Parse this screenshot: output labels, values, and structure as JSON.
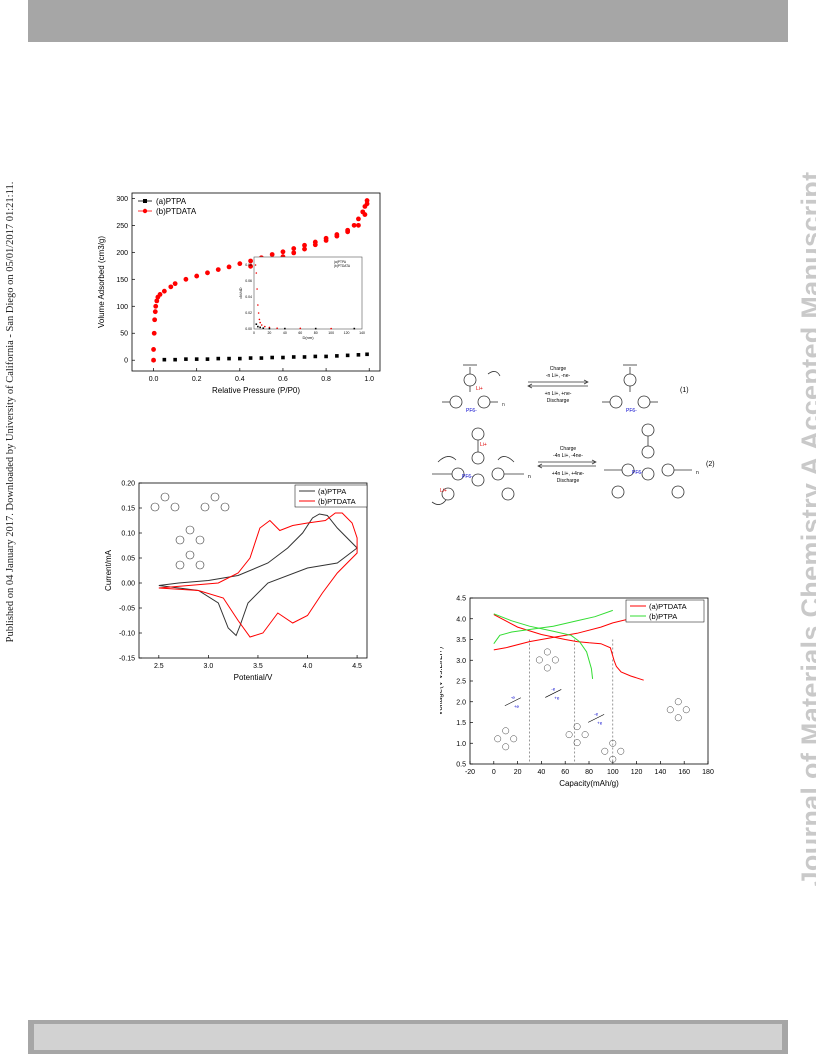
{
  "sidebar_left": "Published on 04 January 2017. Downloaded by University of California - San Diego on 05/01/2017 01:21:11.",
  "sidebar_right": "Journal of Materials Chemistry A Accepted Manuscript",
  "chart_data": [
    {
      "type": "scatter",
      "xlabel": "Relative Pressure (P/P0)",
      "ylabel": "Volume Adsorbed (cm3/g)",
      "xlim": [
        -0.1,
        1.05
      ],
      "ylim": [
        -20,
        310
      ],
      "xticks": [
        "0.0",
        "0.2",
        "0.4",
        "0.6",
        "0.8",
        "1.0"
      ],
      "yticks": [
        "0",
        "50",
        "100",
        "150",
        "200",
        "250",
        "300"
      ],
      "series": [
        {
          "name": "(a)PTPA",
          "color": "#000000",
          "x": [
            0.0,
            0.05,
            0.1,
            0.15,
            0.2,
            0.25,
            0.3,
            0.35,
            0.4,
            0.45,
            0.5,
            0.55,
            0.6,
            0.65,
            0.7,
            0.75,
            0.8,
            0.85,
            0.9,
            0.95,
            0.99
          ],
          "y": [
            0,
            1,
            1,
            2,
            2,
            2,
            3,
            3,
            3,
            4,
            4,
            5,
            5,
            6,
            6,
            7,
            7,
            8,
            9,
            10,
            11
          ]
        },
        {
          "name": "(b)PTDATA",
          "color": "#ff0000",
          "x": [
            0.0,
            0.0,
            0.003,
            0.005,
            0.008,
            0.01,
            0.015,
            0.02,
            0.03,
            0.05,
            0.08,
            0.1,
            0.15,
            0.2,
            0.25,
            0.3,
            0.35,
            0.4,
            0.45,
            0.5,
            0.55,
            0.6,
            0.65,
            0.7,
            0.75,
            0.8,
            0.85,
            0.9,
            0.93,
            0.95,
            0.97,
            0.98,
            0.99,
            0.99,
            0.98,
            0.95,
            0.9,
            0.85,
            0.8,
            0.75,
            0.7,
            0.65,
            0.6,
            0.55,
            0.5,
            0.45
          ],
          "y": [
            0,
            20,
            50,
            75,
            90,
            100,
            110,
            117,
            122,
            128,
            136,
            142,
            150,
            156,
            162,
            168,
            173,
            179,
            184,
            190,
            196,
            201,
            207,
            213,
            219,
            226,
            233,
            241,
            250,
            262,
            275,
            285,
            296,
            290,
            270,
            250,
            238,
            230,
            222,
            214,
            206,
            199,
            192,
            186,
            180,
            174
          ]
        }
      ],
      "inset": {
        "xlabel": "D(nm)",
        "ylabel": "dV/dD",
        "xticks": [
          "0",
          "20",
          "40",
          "60",
          "80",
          "100",
          "120",
          "140"
        ],
        "yticks": [
          "0.00",
          "0.02",
          "0.04",
          "0.06",
          "0.08"
        ],
        "legend": [
          "(a)PTPA",
          "(b)PTDATA"
        ]
      }
    },
    {
      "type": "line",
      "xlabel": "Potential/V",
      "ylabel": "Current/mA",
      "xlim": [
        2.3,
        4.6
      ],
      "ylim": [
        -0.15,
        0.2
      ],
      "xticks": [
        "2.5",
        "3.0",
        "3.5",
        "4.0",
        "4.5"
      ],
      "yticks": [
        "-0.15",
        "-0.10",
        "-0.05",
        "0.00",
        "0.05",
        "0.10",
        "0.15",
        "0.20"
      ],
      "series": [
        {
          "name": "(a)PTPA",
          "color": "#333333",
          "x": [
            2.5,
            2.7,
            3.0,
            3.3,
            3.6,
            3.8,
            3.95,
            4.05,
            4.12,
            4.2,
            4.3,
            4.5,
            4.5,
            4.3,
            4.0,
            3.6,
            3.4,
            3.32,
            3.28,
            3.2,
            3.1,
            2.9,
            2.7,
            2.5
          ],
          "y": [
            -0.005,
            0.0,
            0.005,
            0.015,
            0.04,
            0.07,
            0.1,
            0.13,
            0.138,
            0.135,
            0.11,
            0.07,
            0.07,
            0.04,
            0.03,
            0.0,
            -0.04,
            -0.085,
            -0.105,
            -0.09,
            -0.04,
            -0.015,
            -0.01,
            -0.005
          ]
        },
        {
          "name": "(b)PTDATA",
          "color": "#ff0000",
          "x": [
            2.5,
            2.8,
            3.1,
            3.3,
            3.42,
            3.52,
            3.62,
            3.72,
            3.85,
            4.0,
            4.18,
            4.28,
            4.35,
            4.45,
            4.5,
            4.5,
            4.3,
            4.15,
            4.0,
            3.85,
            3.7,
            3.55,
            3.42,
            3.3,
            3.15,
            2.9,
            2.5
          ],
          "y": [
            -0.01,
            -0.005,
            0.0,
            0.02,
            0.05,
            0.11,
            0.125,
            0.105,
            0.115,
            0.12,
            0.125,
            0.14,
            0.14,
            0.12,
            0.09,
            0.06,
            0.02,
            -0.02,
            -0.065,
            -0.08,
            -0.06,
            -0.1,
            -0.108,
            -0.075,
            -0.03,
            -0.015,
            -0.01
          ]
        }
      ],
      "legend": [
        "(a)PTPA",
        "(b)PTDATA"
      ]
    },
    {
      "type": "line",
      "xlabel": "Capacity(mAh/g)",
      "ylabel": "Voltage(V vs.Li/Li+)",
      "xlim": [
        -20,
        180
      ],
      "ylim": [
        0.5,
        4.5
      ],
      "xticks": [
        "-20",
        "0",
        "20",
        "40",
        "60",
        "80",
        "100",
        "120",
        "140",
        "160",
        "180"
      ],
      "yticks": [
        "0.5",
        "1.0",
        "1.5",
        "2.0",
        "2.5",
        "3.0",
        "3.5",
        "4.0",
        "4.5"
      ],
      "series": [
        {
          "name": "(a)PTDATA",
          "color": "#ff0000",
          "x": [
            0,
            10,
            30,
            50,
            70,
            90,
            100,
            110,
            120,
            126,
            0,
            20,
            40,
            60,
            70,
            80,
            90,
            98,
            101,
            103,
            107,
            115,
            126
          ],
          "y": [
            3.25,
            3.3,
            3.45,
            3.55,
            3.65,
            3.8,
            3.9,
            3.97,
            4.0,
            4.05,
            4.1,
            3.8,
            3.62,
            3.5,
            3.45,
            3.42,
            3.4,
            3.3,
            3.0,
            2.85,
            2.72,
            2.62,
            2.52
          ]
        },
        {
          "name": "(b)PTPA",
          "color": "#33dd33",
          "x": [
            0,
            5,
            15,
            30,
            50,
            70,
            85,
            100,
            0,
            15,
            30,
            50,
            65,
            72,
            78,
            82,
            83
          ],
          "y": [
            3.4,
            3.6,
            3.68,
            3.74,
            3.82,
            3.95,
            4.05,
            4.2,
            4.12,
            3.95,
            3.82,
            3.7,
            3.6,
            3.45,
            3.2,
            2.8,
            2.55
          ]
        }
      ],
      "legend": [
        "(a)PTDATA",
        "(b)PTPA"
      ],
      "markers_x": [
        30,
        68,
        100
      ],
      "annotations": [
        "-e",
        "+e",
        "-e",
        "+e",
        "-e",
        "+e"
      ]
    }
  ],
  "scheme": {
    "eq1_label": "(1)",
    "eq2_label": "(2)",
    "eq1_top": [
      "Charge",
      "-n Li+, -ne-"
    ],
    "eq1_bottom": [
      "+n Li+, +ne-",
      "Discharge"
    ],
    "eq2_top": [
      "Charge",
      "-4n Li+, -4ne-"
    ],
    "eq2_bottom": [
      "+4n Li+, +4ne-",
      "Discharge"
    ],
    "ion_labels": [
      "Li+",
      "PF6-",
      "Li+",
      "PF6-",
      "n"
    ]
  }
}
